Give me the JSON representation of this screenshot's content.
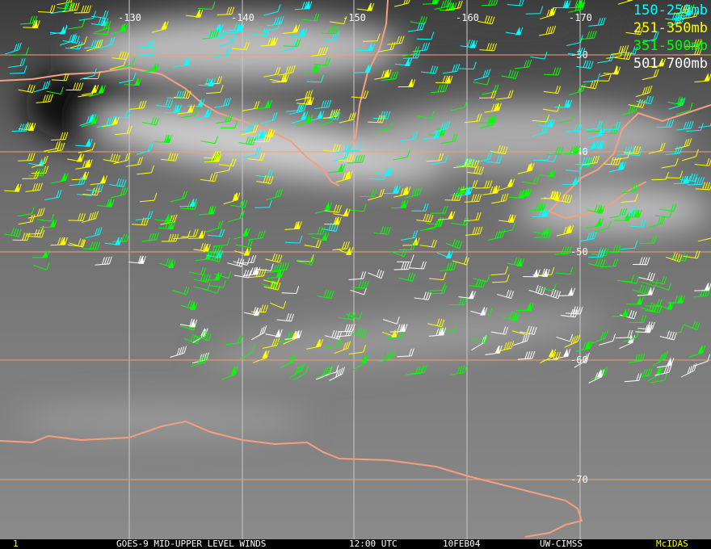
{
  "map": {
    "longitude_labels": [
      "-130",
      "-140",
      "-150",
      "-160",
      "-170"
    ],
    "latitude_labels": [
      "-30",
      "-40",
      "-50",
      "-60",
      "-70"
    ],
    "grid_colors": {
      "meridian": "#c8c8c8",
      "parallel": "#f0a070"
    },
    "coastline_color": "#f4a080"
  },
  "legend": [
    {
      "label": "150-250mb",
      "color": "#00ffff"
    },
    {
      "label": "251-350mb",
      "color": "#ffff00"
    },
    {
      "label": "351-500mb",
      "color": "#00ff00"
    },
    {
      "label": "501-700mb",
      "color": "#ffffff"
    }
  ],
  "status_bar": {
    "frame": "1",
    "title": "GOES-9 MID-UPPER LEVEL WINDS",
    "time": "12:00 UTC",
    "date": "10FEB04",
    "source": "UW-CIMSS",
    "software": "McIDAS"
  }
}
